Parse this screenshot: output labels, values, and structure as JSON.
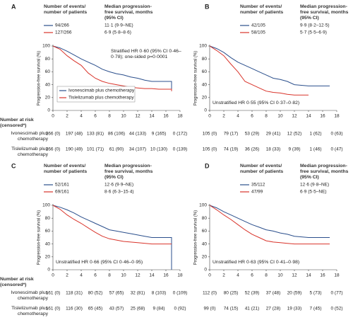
{
  "chart_data": [
    {
      "type": "line",
      "panel": "A",
      "header": [
        "Number of events/ number of patients",
        "Median progression-free survival, months (95% CI)"
      ],
      "summary": [
        [
          "94/266",
          "11·1 (9·9–NE)"
        ],
        [
          "127/266",
          "6·9 (5·8–8·6)"
        ]
      ],
      "annotation": "Stratified HR 0·60 (95% CI 0·46–0·78); one-sided p=0·0001",
      "annotation_position": "top-right",
      "ylabel": "Progression-free survival (%)",
      "xlim": [
        0,
        18
      ],
      "xticks": [
        0,
        2,
        4,
        6,
        8,
        10,
        12,
        14,
        16,
        18
      ],
      "ylim": [
        0,
        100
      ],
      "yticks": [
        0,
        20,
        40,
        60,
        80,
        100
      ],
      "legend": true,
      "series": [
        {
          "name": "Ivonescimab plus chemotherapy",
          "color": "#2b4f8c",
          "x": [
            0,
            1,
            2,
            3,
            4,
            5,
            6,
            7,
            8,
            9,
            10,
            11,
            12,
            13,
            14,
            15,
            16,
            16.8,
            16.8
          ],
          "values": [
            100,
            97,
            92,
            86,
            80,
            75,
            70,
            64,
            60,
            57,
            55,
            52,
            50,
            47,
            45,
            45,
            45,
            45,
            30
          ]
        },
        {
          "name": "Tislelizumab plus chemotherapy",
          "color": "#d9342b",
          "x": [
            0,
            1,
            2,
            3,
            4,
            5,
            6,
            7,
            8,
            9,
            10,
            11,
            12,
            13,
            14,
            15,
            16,
            16.8,
            16.8
          ],
          "values": [
            100,
            95,
            85,
            77,
            70,
            58,
            50,
            45,
            42,
            40,
            38,
            36,
            35,
            34,
            34,
            33,
            33,
            33,
            30
          ]
        }
      ],
      "at_risk": {
        "title": "Number at risk (censored*)",
        "rows": [
          [
            "266 (0)",
            "197 (48)",
            "133 (81)",
            "86 (106)",
            "44 (133)",
            "9 (165)",
            "0 (172)"
          ],
          [
            "266 (0)",
            "190 (49)",
            "101 (71)",
            "61 (90)",
            "34 (107)",
            "10 (130)",
            "0 (139)"
          ]
        ]
      }
    },
    {
      "type": "line",
      "panel": "B",
      "header": [
        "Number of events/ number of patients",
        "Median progression-free survival, months (95% CI)"
      ],
      "summary": [
        [
          "42/105",
          "9·9 (8·2–12·5)"
        ],
        [
          "58/105",
          "5·7 (5·5–6·9)"
        ]
      ],
      "annotation": "Unstratified HR 0·55 (95% CI 0·37–0·82)",
      "annotation_position": "bottom-left",
      "ylabel": "Progression-free survival (%)",
      "xlim": [
        0,
        18
      ],
      "xticks": [
        0,
        2,
        4,
        6,
        8,
        10,
        12,
        14,
        16,
        18
      ],
      "ylim": [
        0,
        100
      ],
      "yticks": [
        0,
        20,
        40,
        60,
        80,
        100
      ],
      "legend": false,
      "series": [
        {
          "color": "#2b4f8c",
          "x": [
            0,
            1,
            2,
            3,
            4,
            5,
            6,
            7,
            8,
            9,
            10,
            11,
            12,
            14,
            16,
            17
          ],
          "values": [
            100,
            96,
            90,
            82,
            75,
            70,
            65,
            60,
            55,
            50,
            48,
            45,
            40,
            38,
            38,
            38
          ]
        },
        {
          "color": "#d9342b",
          "x": [
            0,
            1,
            2,
            3,
            4,
            5,
            6,
            7,
            8,
            9,
            10,
            11,
            12,
            14
          ],
          "values": [
            100,
            93,
            85,
            72,
            60,
            45,
            40,
            35,
            30,
            28,
            27,
            25,
            24,
            24
          ]
        }
      ],
      "at_risk": {
        "rows": [
          [
            "105 (0)",
            "79 (17)",
            "53 (29)",
            "29 (41)",
            "12 (52)",
            "1 (62)",
            "0 (63)"
          ],
          [
            "105 (0)",
            "74 (19)",
            "36 (26)",
            "18 (33)",
            "9 (39)",
            "1 (46)",
            "0 (47)"
          ]
        ]
      }
    },
    {
      "type": "line",
      "panel": "C",
      "header": [
        "Number of events/ number of patients",
        "Median progression-free survival, months (95% CI)"
      ],
      "summary": [
        [
          "52/161",
          "12·6 (9·9–NE)"
        ],
        [
          "69/161",
          "8·6 (6·3–15·4)"
        ]
      ],
      "annotation": "Unstratified HR 0·66 (95% CI 0·46–0·95)",
      "annotation_position": "bottom-left",
      "ylabel": "Progression-free survival (%)",
      "xlim": [
        0,
        18
      ],
      "xticks": [
        0,
        2,
        4,
        6,
        8,
        10,
        12,
        14,
        16,
        18
      ],
      "ylim": [
        0,
        100
      ],
      "yticks": [
        0,
        20,
        40,
        60,
        80,
        100
      ],
      "legend": false,
      "series": [
        {
          "name": "Ivonescimab plus chemotherapy",
          "color": "#2b4f8c",
          "x": [
            0,
            1,
            2,
            3,
            4,
            5,
            6,
            7,
            8,
            9,
            10,
            11,
            12,
            13,
            14,
            16.8,
            16.8
          ],
          "values": [
            100,
            97,
            93,
            88,
            82,
            77,
            72,
            67,
            62,
            60,
            58,
            56,
            54,
            52,
            50,
            50,
            0
          ]
        },
        {
          "name": "Tislelizumab plus chemotherapy",
          "color": "#d9342b",
          "x": [
            0,
            1,
            2,
            3,
            4,
            5,
            6,
            7,
            8,
            9,
            10,
            11,
            12,
            14,
            16.8
          ],
          "values": [
            100,
            94,
            85,
            78,
            72,
            65,
            58,
            52,
            48,
            46,
            44,
            43,
            42,
            40,
            40
          ]
        }
      ],
      "at_risk": {
        "title": "Number at risk (censored*)",
        "rows": [
          [
            "161 (0)",
            "118 (31)",
            "80 (52)",
            "57 (65)",
            "32 (81)",
            "8 (103)",
            "0 (109)"
          ],
          [
            "161 (0)",
            "116 (30)",
            "65 (45)",
            "43 (57)",
            "25 (68)",
            "9 (84)",
            "0 (92)"
          ]
        ]
      }
    },
    {
      "type": "line",
      "panel": "D",
      "header": [
        "Number of events/ number of patients",
        "Median progression-free survival, months (95% CI)"
      ],
      "summary": [
        [
          "35/112",
          "12·6 (9·8–NE)"
        ],
        [
          "47/99",
          "6·9 (5·5–NE)"
        ]
      ],
      "annotation": "Unstratified HR 0·63 (95% CI 0·41–0·98)",
      "annotation_position": "bottom-left",
      "ylabel": "Progression-free survival (%)",
      "xlim": [
        0,
        18
      ],
      "xticks": [
        0,
        2,
        4,
        6,
        8,
        10,
        12,
        14,
        16,
        18
      ],
      "ylim": [
        0,
        100
      ],
      "yticks": [
        0,
        20,
        40,
        60,
        80,
        100
      ],
      "legend": false,
      "series": [
        {
          "color": "#2b4f8c",
          "x": [
            0,
            1,
            2,
            3,
            4,
            5,
            6,
            7,
            8,
            9,
            10,
            11,
            12,
            14,
            17
          ],
          "values": [
            100,
            96,
            90,
            85,
            80,
            75,
            70,
            66,
            62,
            60,
            57,
            55,
            52,
            50,
            50
          ]
        },
        {
          "color": "#d9342b",
          "x": [
            0,
            1,
            2,
            3,
            4,
            5,
            6,
            7,
            8,
            9,
            10,
            11,
            12,
            14,
            17
          ],
          "values": [
            100,
            93,
            85,
            78,
            70,
            62,
            55,
            50,
            45,
            43,
            42,
            41,
            40,
            40,
            40
          ]
        }
      ],
      "at_risk": {
        "rows": [
          [
            "112 (0)",
            "80 (25)",
            "52 (39)",
            "37 (48)",
            "20 (59)",
            "5 (73)",
            "0 (77)"
          ],
          [
            "99 (0)",
            "74 (15)",
            "41 (21)",
            "27 (28)",
            "19 (33)",
            "7 (45)",
            "0 (52)"
          ]
        ]
      }
    }
  ]
}
